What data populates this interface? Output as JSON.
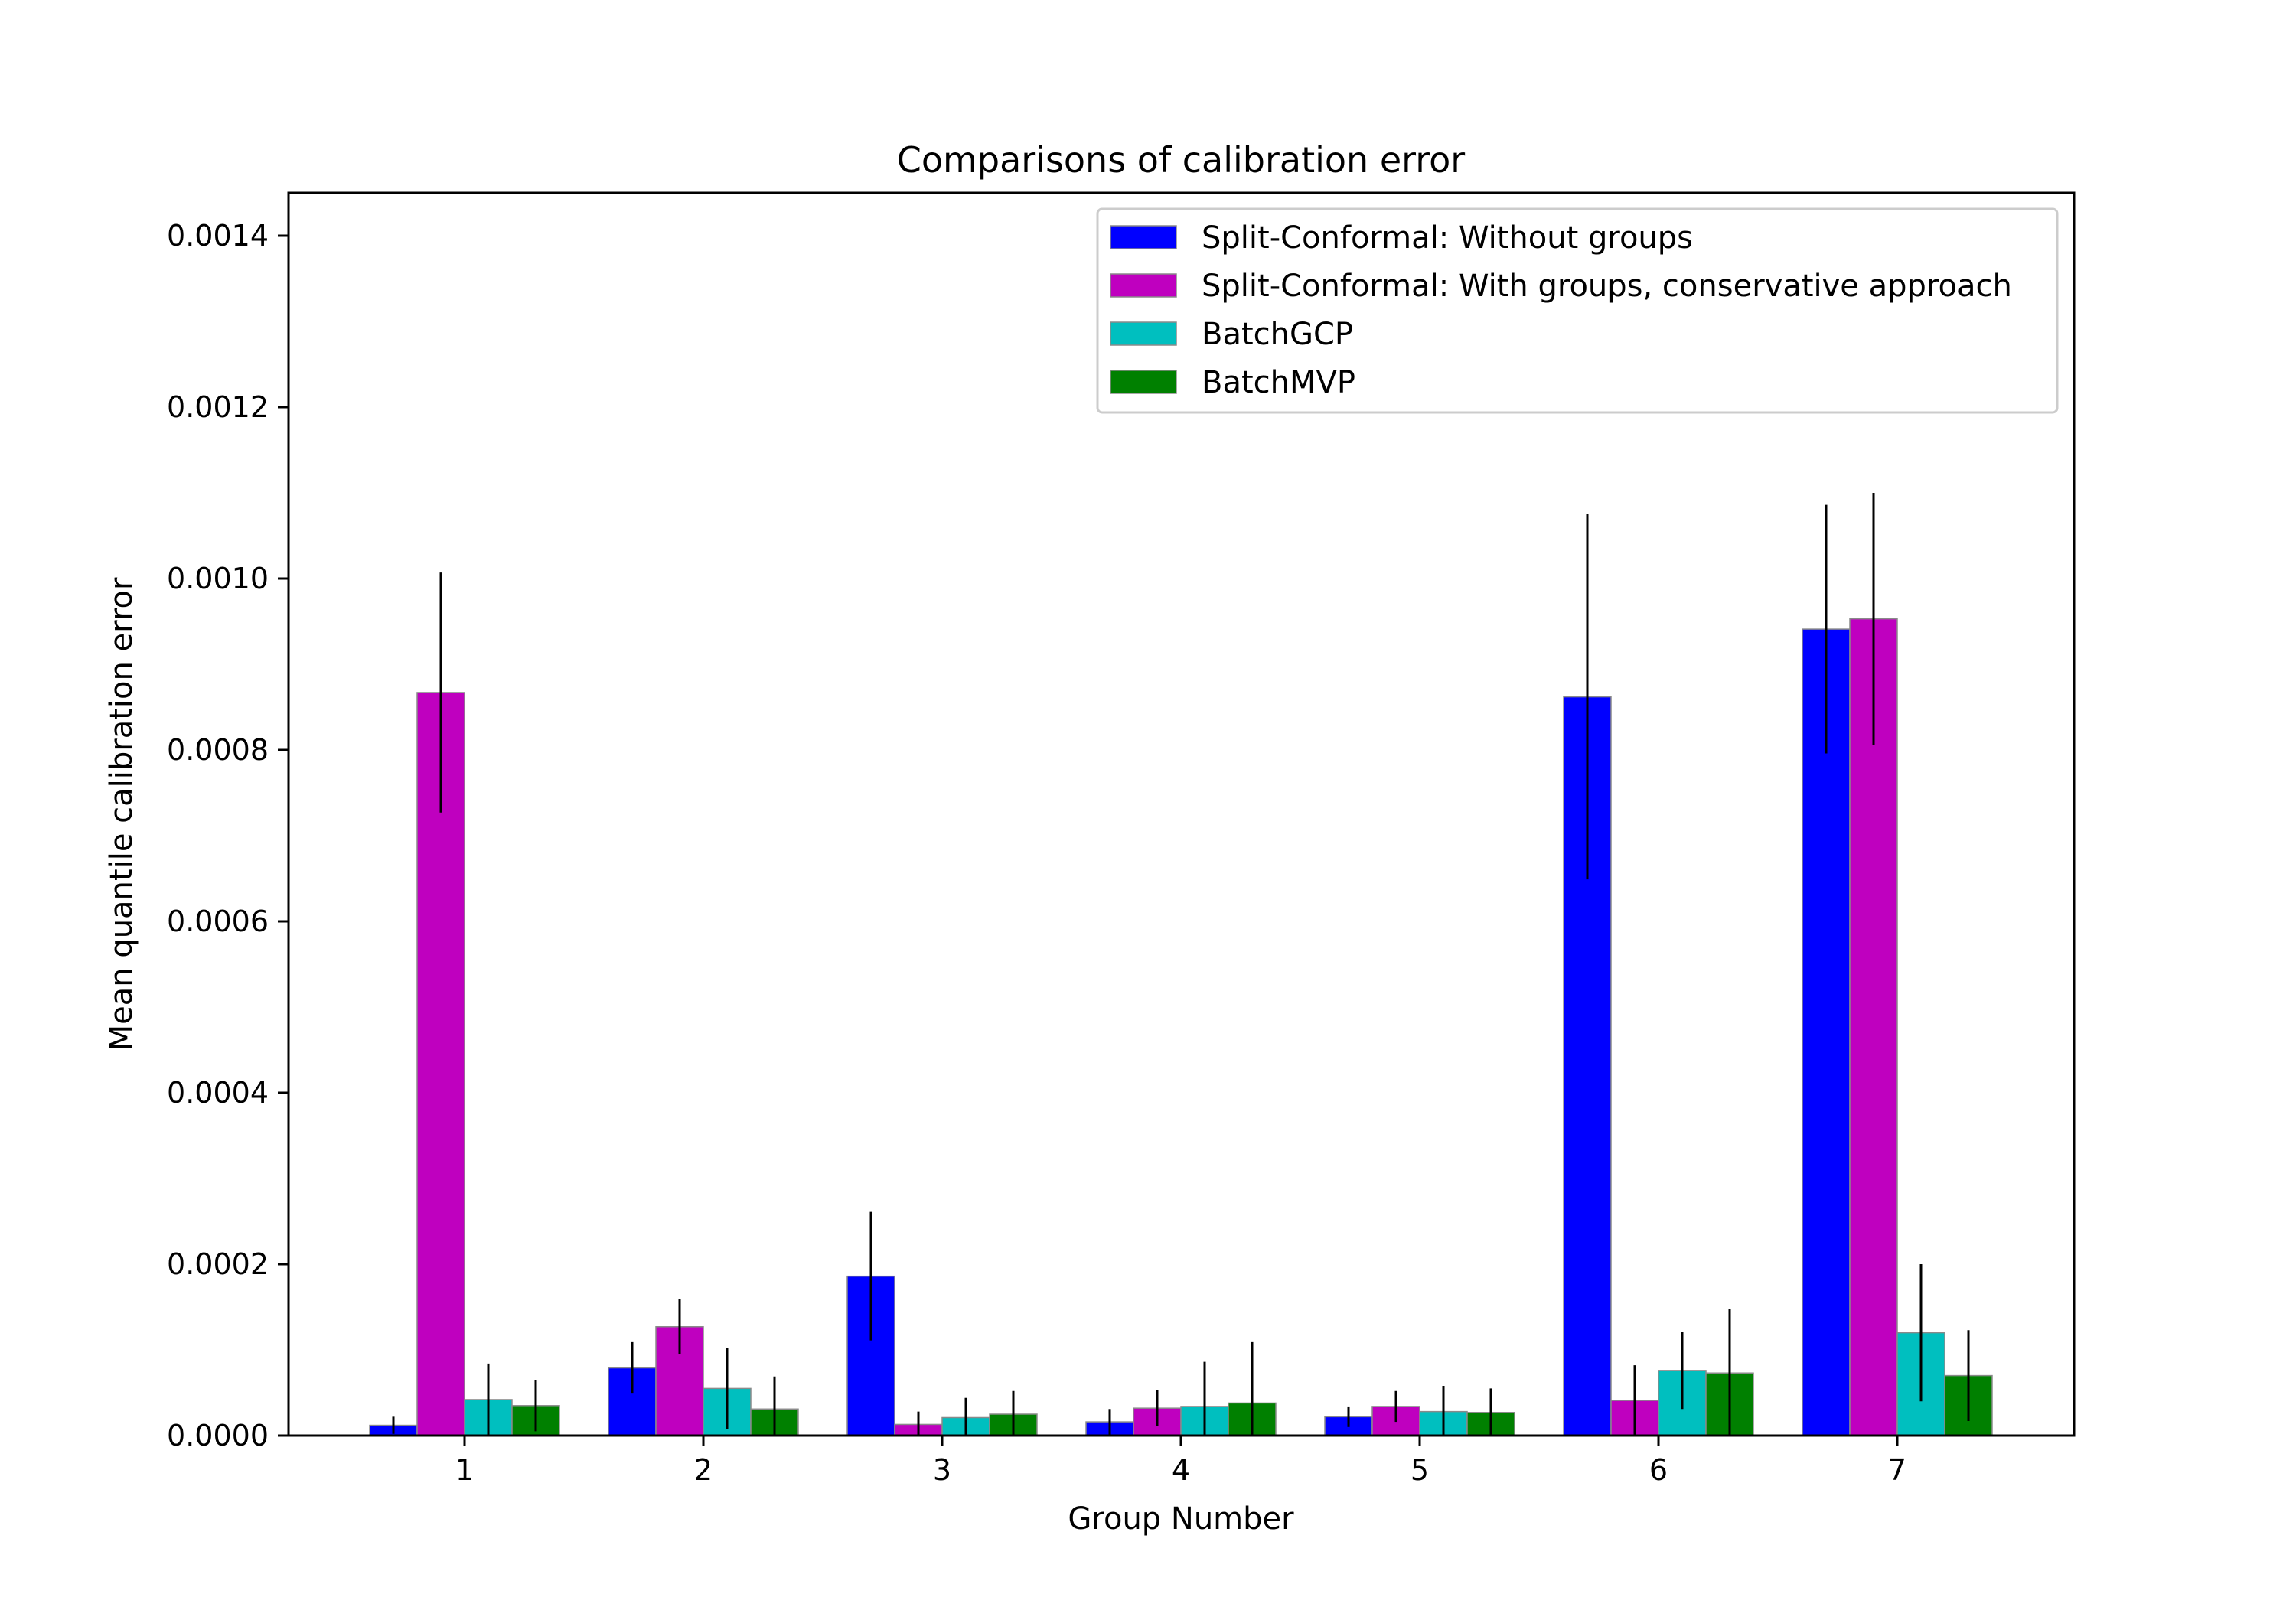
{
  "chart_data": {
    "type": "bar",
    "title": "Comparisons of calibration error",
    "xlabel": "Group Number",
    "ylabel": "Mean quantile calibration error",
    "categories": [
      "1",
      "2",
      "3",
      "4",
      "5",
      "6",
      "7"
    ],
    "ylim": [
      0,
      0.00145
    ],
    "yticks": [
      "0.0000",
      "0.0002",
      "0.0004",
      "0.0006",
      "0.0008",
      "0.0010",
      "0.0012",
      "0.0014"
    ],
    "ytick_values": [
      0,
      0.0002,
      0.0004,
      0.0006,
      0.0008,
      0.001,
      0.0012,
      0.0014
    ],
    "legend_position": "top-right",
    "grid": false,
    "series": [
      {
        "name": "Split-Conformal: Without groups",
        "color": "#0000ff",
        "values": [
          1.2e-05,
          7.9e-05,
          0.000186,
          1.6e-05,
          2.2e-05,
          0.000862,
          0.000941
        ],
        "errors": [
          1e-05,
          3e-05,
          7.5e-05,
          1.5e-05,
          1.2e-05,
          0.000213,
          0.000145
        ]
      },
      {
        "name": "Split-Conformal: With groups, conservative approach",
        "color": "#bf00bf",
        "values": [
          0.000867,
          0.000127,
          1.3e-05,
          3.2e-05,
          3.4e-05,
          4.1e-05,
          0.000953
        ],
        "errors": [
          0.00014,
          3.2e-05,
          1.5e-05,
          2.1e-05,
          1.8e-05,
          4.1e-05,
          0.000147
        ]
      },
      {
        "name": "BatchGCP",
        "color": "#00bfbf",
        "values": [
          4.2e-05,
          5.5e-05,
          2.1e-05,
          3.4e-05,
          2.8e-05,
          7.6e-05,
          0.00012
        ],
        "errors": [
          4.2e-05,
          4.7e-05,
          2.3e-05,
          5.2e-05,
          3e-05,
          4.5e-05,
          8e-05
        ]
      },
      {
        "name": "BatchMVP",
        "color": "#008000",
        "values": [
          3.5e-05,
          3.1e-05,
          2.5e-05,
          3.8e-05,
          2.7e-05,
          7.3e-05,
          7e-05
        ],
        "errors": [
          3e-05,
          3.8e-05,
          2.7e-05,
          7.1e-05,
          2.8e-05,
          7.5e-05,
          5.3e-05
        ]
      }
    ]
  }
}
